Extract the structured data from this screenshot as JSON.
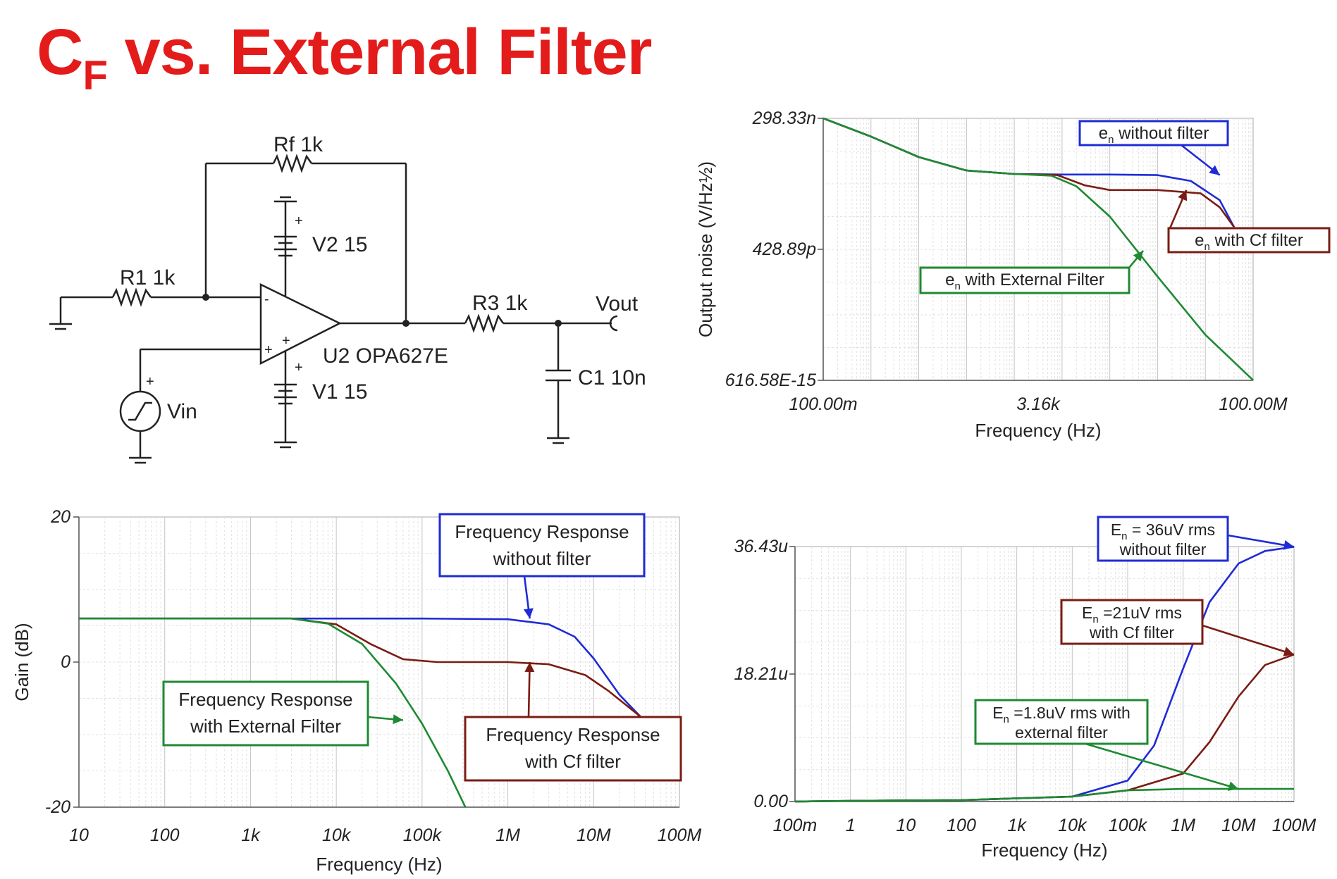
{
  "slide": {
    "title_main": "C",
    "title_sub": "F",
    "title_rest": " vs. External Filter"
  },
  "schematic": {
    "rf": "Rf 1k",
    "r1": "R1 1k",
    "r3": "R3 1k",
    "v2": "V2 15",
    "v1": "V1 15",
    "opamp": "U2 OPA627E",
    "vout": "Vout",
    "c1": "C1 10n",
    "vin": "Vin",
    "plus": "+",
    "minus": "-"
  },
  "colors": {
    "without_filter": "#1f2bd6",
    "cf_filter": "#7a1c14",
    "external_filter": "#1e8a32",
    "title": "#e31b1b"
  },
  "chart_data": [
    {
      "type": "line",
      "id": "output-noise",
      "xlabel": "Frequency (Hz)",
      "ylabel": "Output noise (V/Hz½)",
      "xscale": "log",
      "yscale": "log",
      "xlim": [
        0.1,
        100000000
      ],
      "ylim": [
        6.1658e-13,
        2.9833e-07
      ],
      "x_ticks": [
        "100.00m",
        "3.16k",
        "100.00M"
      ],
      "y_ticks": [
        "298.33n",
        "428.89p",
        "616.58E-15"
      ],
      "grid": true,
      "series": [
        {
          "key": "without_filter",
          "points": [
            [
              0.1,
              2.98e-07
            ],
            [
              1,
              1.2e-07
            ],
            [
              10,
              4.3e-08
            ],
            [
              100,
              2.2e-08
            ],
            [
              1000,
              1.85e-08
            ],
            [
              10000,
              1.8e-08
            ],
            [
              100000,
              1.8e-08
            ],
            [
              1000000,
              1.75e-08
            ],
            [
              5000000,
              1.3e-08
            ],
            [
              20000000,
              5e-09
            ],
            [
              40000000,
              1.3e-09
            ]
          ]
        },
        {
          "key": "cf_filter",
          "points": [
            [
              0.1,
              2.98e-07
            ],
            [
              1,
              1.2e-07
            ],
            [
              10,
              4.3e-08
            ],
            [
              100,
              2.2e-08
            ],
            [
              1000,
              1.85e-08
            ],
            [
              8000,
              1.75e-08
            ],
            [
              30000,
              1.05e-08
            ],
            [
              100000,
              8.3e-09
            ],
            [
              1000000,
              8.3e-09
            ],
            [
              8000000,
              7e-09
            ],
            [
              20000000,
              3.5e-09
            ],
            [
              40000000,
              1.3e-09
            ]
          ]
        },
        {
          "key": "external_filter",
          "points": [
            [
              0.1,
              2.98e-07
            ],
            [
              1,
              1.2e-07
            ],
            [
              10,
              4.3e-08
            ],
            [
              100,
              2.2e-08
            ],
            [
              1000,
              1.85e-08
            ],
            [
              6000,
              1.7e-08
            ],
            [
              20000,
              1e-08
            ],
            [
              100000,
              2.2e-09
            ],
            [
              1000000,
              1.1e-10
            ],
            [
              10000000,
              6e-12
            ],
            [
              100000000,
              6.2e-13
            ]
          ]
        }
      ],
      "callouts": [
        {
          "base": "e",
          "sub": "n",
          "rest": " without filter",
          "key": "without_filter",
          "target": [
            20000000,
            1.75e-08
          ]
        },
        {
          "base": "e",
          "sub": "n",
          "rest": " with Cf filter",
          "key": "cf_filter",
          "target": [
            4000000,
            8.3e-09
          ]
        },
        {
          "base": "e",
          "sub": "n",
          "rest": " with External Filter",
          "key": "external_filter",
          "target": [
            500000,
            4e-10
          ]
        }
      ]
    },
    {
      "type": "line",
      "id": "gain",
      "xlabel": "Frequency (Hz)",
      "ylabel": "Gain (dB)",
      "xscale": "log",
      "xlim": [
        10,
        100000000
      ],
      "ylim": [
        -20,
        20
      ],
      "x_ticks": [
        "10",
        "100",
        "1k",
        "10k",
        "100k",
        "1M",
        "10M",
        "100M"
      ],
      "y_ticks": [
        "20",
        "0",
        "-20"
      ],
      "grid": true,
      "series": [
        {
          "key": "without_filter",
          "points": [
            [
              10,
              6
            ],
            [
              1000,
              6
            ],
            [
              100000,
              6
            ],
            [
              1000000,
              5.9
            ],
            [
              3000000,
              5.2
            ],
            [
              6000000,
              3.5
            ],
            [
              10000000,
              0.5
            ],
            [
              20000000,
              -4.5
            ],
            [
              35000000,
              -7.5
            ]
          ]
        },
        {
          "key": "cf_filter",
          "points": [
            [
              10,
              6
            ],
            [
              3000,
              6
            ],
            [
              10000,
              5.2
            ],
            [
              25000,
              2.5
            ],
            [
              60000,
              0.4
            ],
            [
              150000,
              0
            ],
            [
              1000000,
              0
            ],
            [
              3000000,
              -0.3
            ],
            [
              8000000,
              -1.8
            ],
            [
              15000000,
              -4
            ],
            [
              35000000,
              -7.5
            ]
          ]
        },
        {
          "key": "external_filter",
          "points": [
            [
              10,
              6
            ],
            [
              3000,
              6
            ],
            [
              8000,
              5.3
            ],
            [
              20000,
              2.5
            ],
            [
              50000,
              -3
            ],
            [
              100000,
              -8.5
            ],
            [
              200000,
              -15
            ],
            [
              320000,
              -20
            ]
          ]
        }
      ],
      "callouts": [
        {
          "line1": "Frequency Response",
          "line2": "without filter",
          "key": "without_filter",
          "target": [
            1800000,
            6
          ]
        },
        {
          "line1": "Frequency Response",
          "line2": "with Cf filter",
          "key": "cf_filter",
          "target": [
            1800000,
            0
          ]
        },
        {
          "line1": "Frequency Response",
          "line2": "with External Filter",
          "key": "external_filter",
          "target": [
            60000,
            -8
          ]
        }
      ]
    },
    {
      "type": "line",
      "id": "integrated-noise",
      "xlabel": "Frequency (Hz)",
      "xscale": "log",
      "xlim": [
        0.1,
        100000000
      ],
      "ylim": [
        0,
        3.643e-05
      ],
      "x_ticks": [
        "100m",
        "1",
        "10",
        "100",
        "1k",
        "10k",
        "100k",
        "1M",
        "10M",
        "100M"
      ],
      "y_ticks": [
        "36.43u",
        "18.21u",
        "0.00"
      ],
      "grid": true,
      "series": [
        {
          "key": "without_filter",
          "points": [
            [
              0.1,
              0
            ],
            [
              1,
              1e-07
            ],
            [
              100,
              2e-07
            ],
            [
              10000,
              7e-07
            ],
            [
              100000,
              3e-06
            ],
            [
              300000,
              8e-06
            ],
            [
              1000000,
              1.9e-05
            ],
            [
              3000000,
              2.85e-05
            ],
            [
              10000000,
              3.4e-05
            ],
            [
              30000000,
              3.58e-05
            ],
            [
              100000000,
              3.64e-05
            ]
          ]
        },
        {
          "key": "cf_filter",
          "points": [
            [
              0.1,
              0
            ],
            [
              1,
              1e-07
            ],
            [
              100,
              2e-07
            ],
            [
              10000,
              7e-07
            ],
            [
              100000,
              1.6e-06
            ],
            [
              1000000,
              4e-06
            ],
            [
              3000000,
              8.5e-06
            ],
            [
              10000000,
              1.5e-05
            ],
            [
              30000000,
              1.95e-05
            ],
            [
              100000000,
              2.1e-05
            ]
          ]
        },
        {
          "key": "external_filter",
          "points": [
            [
              0.1,
              0
            ],
            [
              1,
              1e-07
            ],
            [
              100,
              2e-07
            ],
            [
              10000,
              7e-07
            ],
            [
              100000,
              1.6e-06
            ],
            [
              1000000,
              1.8e-06
            ],
            [
              100000000,
              1.8e-06
            ]
          ]
        }
      ],
      "callouts": [
        {
          "line1_base": "E",
          "line1_sub": "n",
          "line1_rest": " = 36uV rms",
          "line2": "without filter",
          "key": "without_filter",
          "target": [
            100000000,
            3.64e-05
          ]
        },
        {
          "line1_base": "E",
          "line1_sub": "n",
          "line1_rest": " =21uV rms",
          "line2": "with Cf filter",
          "key": "cf_filter",
          "target": [
            100000000,
            2.1e-05
          ]
        },
        {
          "line1_base": "E",
          "line1_sub": "n",
          "line1_rest": " =1.8uV rms with",
          "line2": "external filter",
          "key": "external_filter",
          "target": [
            10000000,
            1.8e-06
          ]
        }
      ]
    }
  ]
}
